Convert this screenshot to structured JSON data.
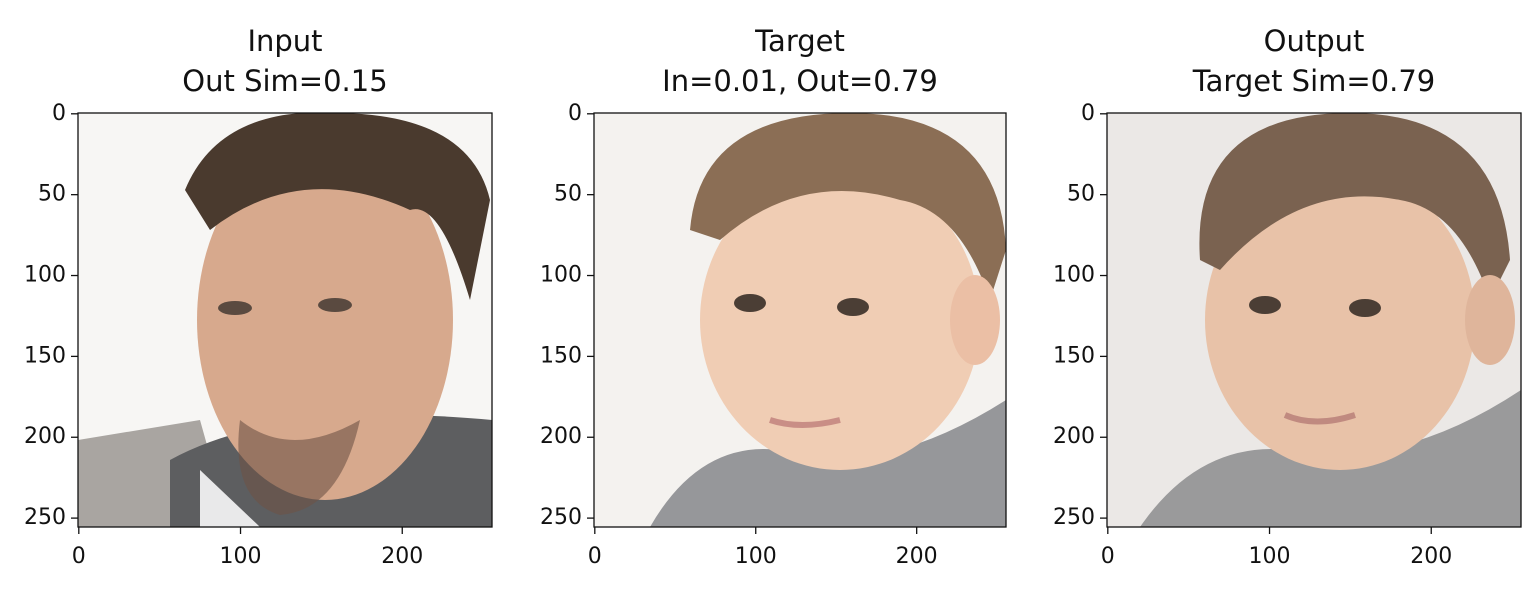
{
  "chart_data": [
    {
      "type": "image",
      "title": "Input",
      "subtitle": "Out Sim=0.15",
      "xlim": [
        -0.5,
        255.5
      ],
      "ylim": [
        255.5,
        -0.5
      ],
      "xticks": [
        0,
        100,
        200
      ],
      "yticks": [
        0,
        50,
        100,
        150,
        200,
        250
      ]
    },
    {
      "type": "image",
      "title": "Target",
      "subtitle": "In=0.01, Out=0.79",
      "xlim": [
        -0.5,
        255.5
      ],
      "ylim": [
        255.5,
        -0.5
      ],
      "xticks": [
        0,
        100,
        200
      ],
      "yticks": [
        0,
        50,
        100,
        150,
        200,
        250
      ]
    },
    {
      "type": "image",
      "title": "Output",
      "subtitle": "Target Sim=0.79",
      "xlim": [
        -0.5,
        255.5
      ],
      "ylim": [
        255.5,
        -0.5
      ],
      "xticks": [
        0,
        100,
        200
      ],
      "yticks": [
        0,
        50,
        100,
        150,
        200,
        250
      ]
    }
  ]
}
